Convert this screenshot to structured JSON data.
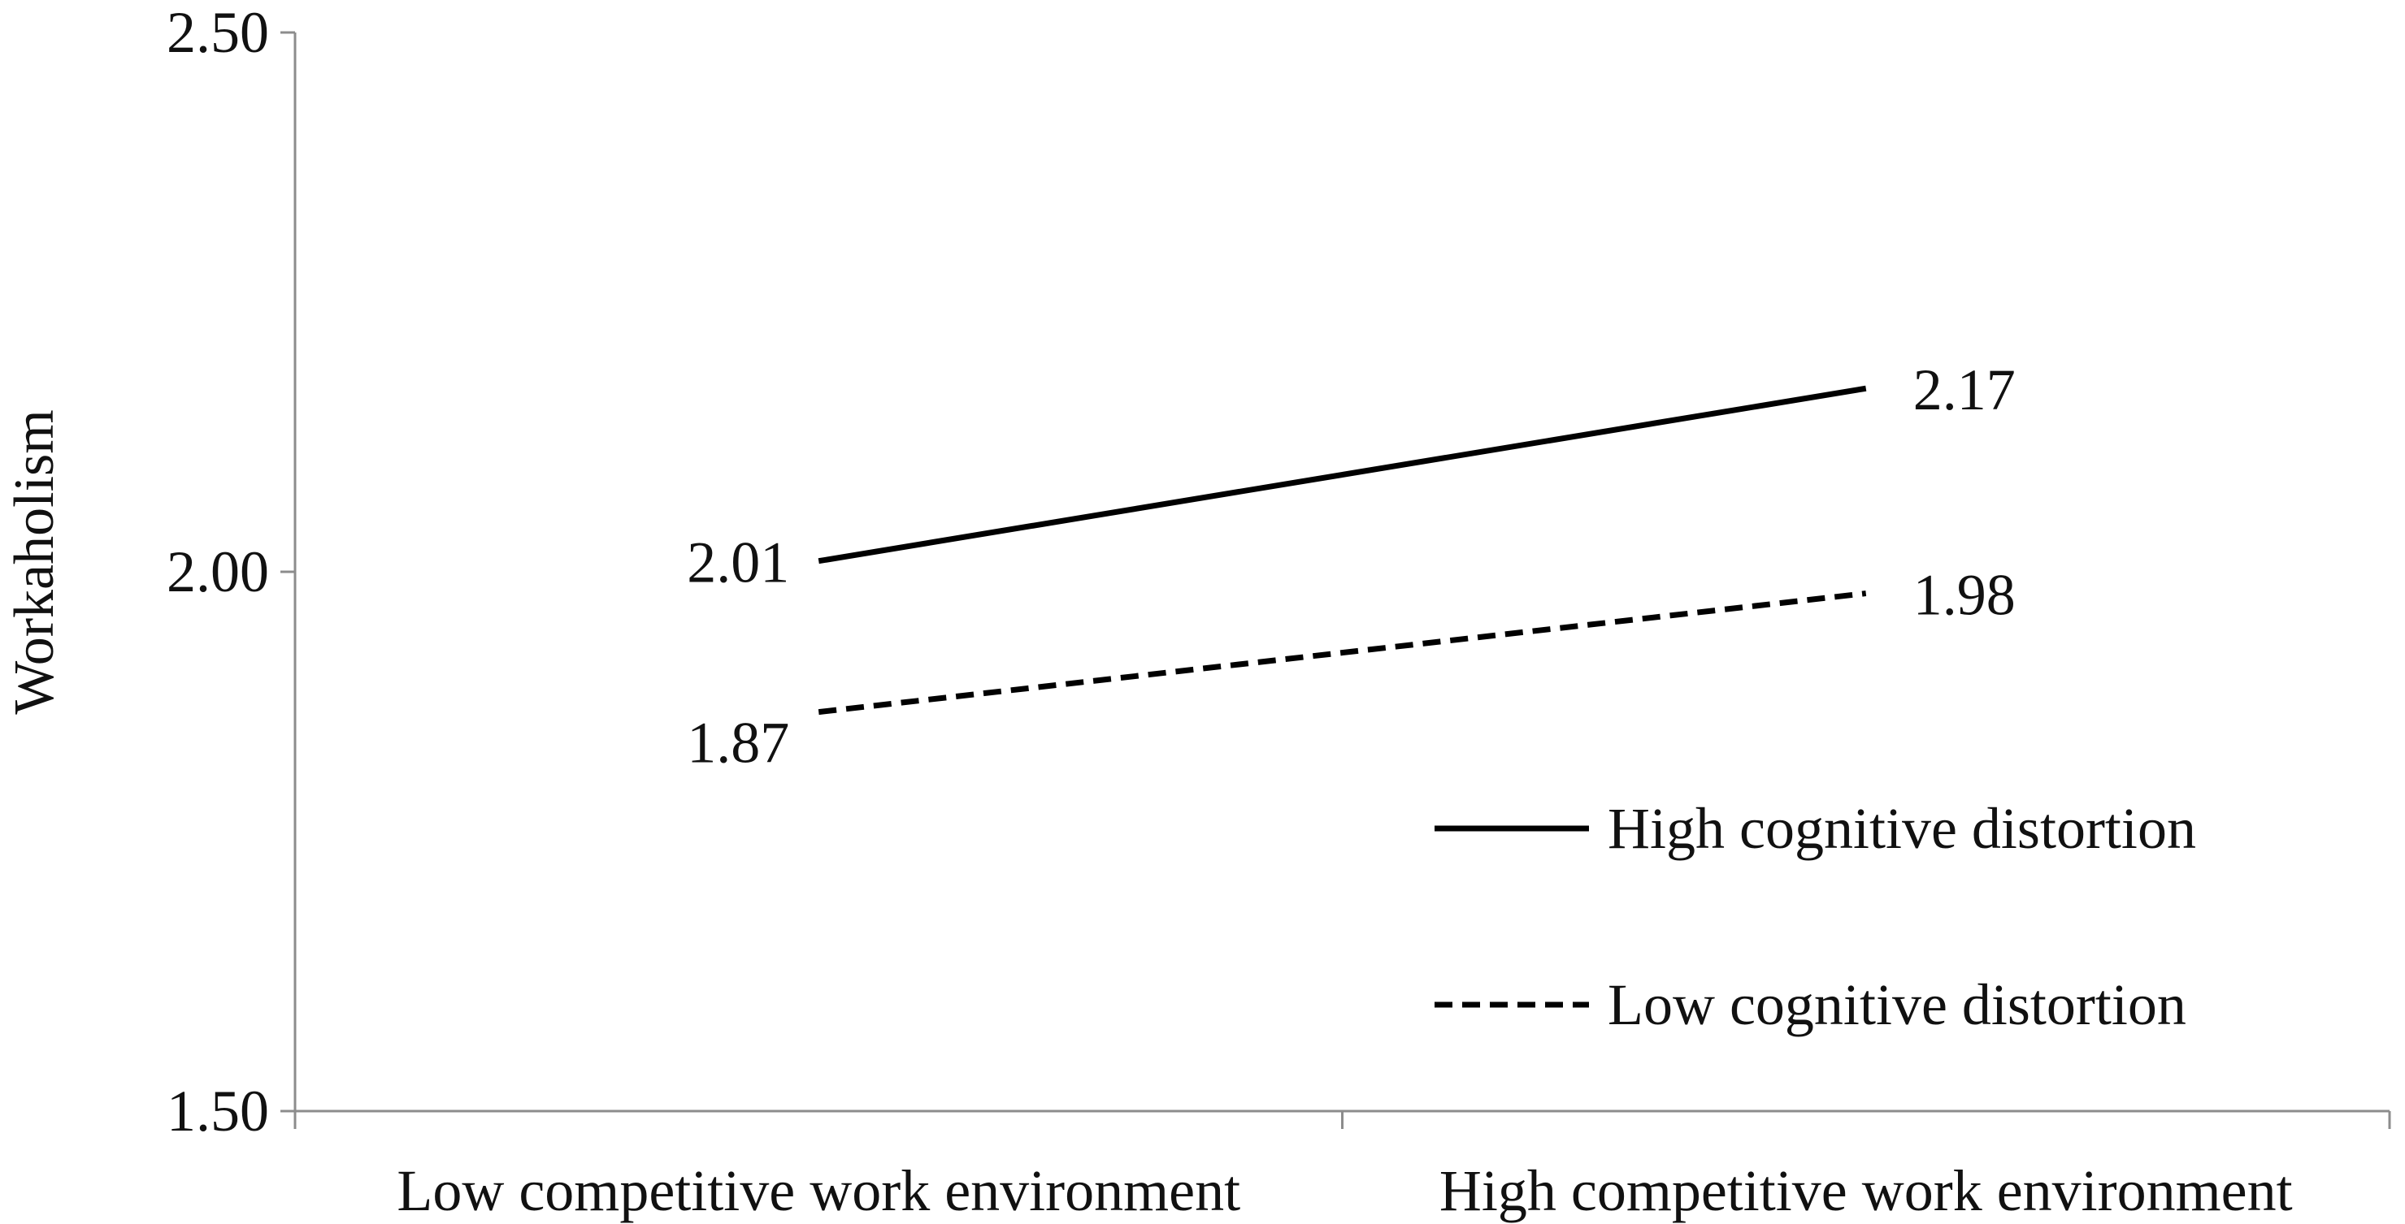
{
  "chart_data": {
    "type": "line",
    "title": "",
    "xlabel": "",
    "ylabel": "Workaholism",
    "ylim": [
      1.5,
      2.5
    ],
    "yticks": [
      "1.50",
      "2.00",
      "2.50"
    ],
    "categories": [
      "Low competitive work environment",
      "High competitive work environment"
    ],
    "series": [
      {
        "name": "High cognitive distortion",
        "values": [
          2.01,
          2.17
        ],
        "labels": [
          "2.01",
          "2.17"
        ],
        "style": "solid",
        "color": "#000000"
      },
      {
        "name": "Low cognitive distortion",
        "values": [
          1.87,
          1.98
        ],
        "labels": [
          "1.87",
          "1.98"
        ],
        "style": "dashed",
        "color": "#000000"
      }
    ],
    "grid": false,
    "legend_position": "bottom-right"
  }
}
